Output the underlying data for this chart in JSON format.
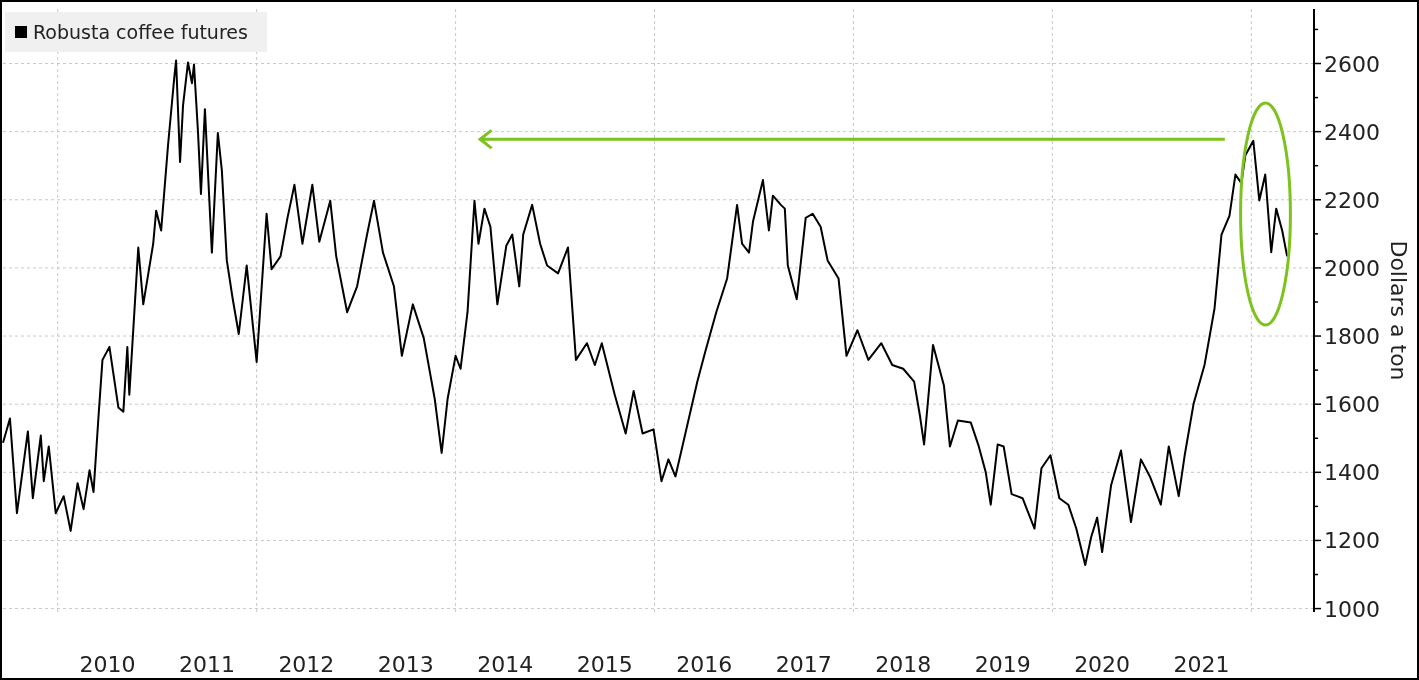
{
  "chart_data": {
    "type": "line",
    "xlabel": null,
    "ylabel": "Dollars a ton",
    "xlim": [
      2009.45,
      2022.63
    ],
    "xticks": [
      {
        "value": 2010,
        "label": null
      },
      {
        "value": 2010.5,
        "label": "2010"
      },
      {
        "value": 2011.5,
        "label": "2011"
      },
      {
        "value": 2012,
        "label": null
      },
      {
        "value": 2012.5,
        "label": "2012"
      },
      {
        "value": 2013.5,
        "label": "2013"
      },
      {
        "value": 2014,
        "label": null
      },
      {
        "value": 2014.5,
        "label": "2014"
      },
      {
        "value": 2015.5,
        "label": "2015"
      },
      {
        "value": 2016,
        "label": null
      },
      {
        "value": 2016.5,
        "label": "2016"
      },
      {
        "value": 2017.5,
        "label": "2017"
      },
      {
        "value": 2018,
        "label": null
      },
      {
        "value": 2018.5,
        "label": "2018"
      },
      {
        "value": 2019.5,
        "label": "2019"
      },
      {
        "value": 2020,
        "label": null
      },
      {
        "value": 2020.5,
        "label": "2020"
      },
      {
        "value": 2021.5,
        "label": "2021"
      },
      {
        "value": 2022,
        "label": null
      }
    ],
    "ylim": [
      990,
      2760
    ],
    "yticks": [
      1000,
      {
        "value": 1100,
        "label": null
      },
      1200,
      {
        "value": 1300,
        "label": null
      },
      1400,
      {
        "value": 1500,
        "label": null
      },
      1600,
      {
        "value": 1700,
        "label": null
      },
      1800,
      {
        "value": 1900,
        "label": null
      },
      2000,
      {
        "value": 2100,
        "label": null
      },
      2200,
      {
        "value": 2300,
        "label": null
      },
      2400,
      {
        "value": 2500,
        "label": null
      },
      2600,
      {
        "value": 2700,
        "label": null
      }
    ],
    "grid": true,
    "legend": "top left",
    "marker": "none",
    "line_style": "solid",
    "series": [
      {
        "name": "Robusta coffee futures",
        "color": "#000000",
        "x": [
          2009.45,
          2009.52,
          2009.59,
          2009.7,
          2009.75,
          2009.83,
          2009.86,
          2009.91,
          2009.98,
          2010.06,
          2010.13,
          2010.2,
          2010.26,
          2010.32,
          2010.36,
          2010.41,
          2010.45,
          2010.52,
          2010.61,
          2010.66,
          2010.7,
          2010.72,
          2010.81,
          2010.86,
          2010.96,
          2010.99,
          2011.04,
          2011.11,
          2011.17,
          2011.19,
          2011.23,
          2011.26,
          2011.31,
          2011.35,
          2011.37,
          2011.41,
          2011.44,
          2011.48,
          2011.55,
          2011.61,
          2011.65,
          2011.7,
          2011.76,
          2011.82,
          2011.9,
          2012.0,
          2012.1,
          2012.15,
          2012.24,
          2012.31,
          2012.38,
          2012.46,
          2012.56,
          2012.63,
          2012.74,
          2012.8,
          2012.91,
          2013.01,
          2013.11,
          2013.18,
          2013.27,
          2013.38,
          2013.46,
          2013.57,
          2013.68,
          2013.79,
          2013.86,
          2013.92,
          2014.0,
          2014.05,
          2014.12,
          2014.19,
          2014.23,
          2014.29,
          2014.35,
          2014.42,
          2014.51,
          2014.57,
          2014.64,
          2014.68,
          2014.77,
          2014.85,
          2014.92,
          2015.03,
          2015.13,
          2015.21,
          2015.32,
          2015.4,
          2015.47,
          2015.6,
          2015.71,
          2015.79,
          2015.88,
          2015.99,
          2016.07,
          2016.14,
          2016.21,
          2016.28,
          2016.43,
          2016.51,
          2016.62,
          2016.73,
          2016.83,
          2016.88,
          2016.95,
          2016.99,
          2017.09,
          2017.15,
          2017.19,
          2017.27,
          2017.31,
          2017.34,
          2017.43,
          2017.52,
          2017.59,
          2017.67,
          2017.74,
          2017.85,
          2017.93,
          2018.04,
          2018.15,
          2018.28,
          2018.39,
          2018.5,
          2018.61,
          2018.67,
          2018.71,
          2018.8,
          2018.91,
          2018.97,
          2019.05,
          2019.18,
          2019.26,
          2019.33,
          2019.38,
          2019.45,
          2019.51,
          2019.59,
          2019.7,
          2019.82,
          2019.89,
          2019.98,
          2020.07,
          2020.16,
          2020.24,
          2020.33,
          2020.39,
          2020.45,
          2020.5,
          2020.59,
          2020.69,
          2020.79,
          2020.89,
          2020.98,
          2021.09,
          2021.17,
          2021.27,
          2021.33,
          2021.42,
          2021.53,
          2021.63,
          2021.7,
          2021.78,
          2021.84,
          2021.9,
          2021.94,
          2022.02,
          2022.08,
          2022.14,
          2022.2,
          2022.25,
          2022.31,
          2022.36
        ],
        "values": [
          1487,
          1558,
          1280,
          1520,
          1324,
          1508,
          1374,
          1476,
          1280,
          1330,
          1228,
          1368,
          1292,
          1406,
          1342,
          1563,
          1730,
          1768,
          1590,
          1578,
          1768,
          1628,
          2060,
          1893,
          2071,
          2168,
          2110,
          2363,
          2553,
          2609,
          2311,
          2477,
          2603,
          2542,
          2597,
          2401,
          2217,
          2466,
          2045,
          2396,
          2287,
          2022,
          1908,
          1806,
          2007,
          1724,
          2159,
          1996,
          2034,
          2147,
          2244,
          2071,
          2244,
          2077,
          2197,
          2034,
          1870,
          1946,
          2098,
          2197,
          2045,
          1946,
          1742,
          1893,
          1794,
          1616,
          1457,
          1616,
          1742,
          1704,
          1870,
          2197,
          2071,
          2174,
          2121,
          1893,
          2065,
          2098,
          1946,
          2098,
          2185,
          2071,
          2007,
          1984,
          2060,
          1730,
          1779,
          1715,
          1779,
          1628,
          1514,
          1639,
          1514,
          1526,
          1374,
          1438,
          1388,
          1476,
          1666,
          1754,
          1869,
          1969,
          2185,
          2071,
          2045,
          2136,
          2258,
          2110,
          2212,
          2185,
          2174,
          2007,
          1908,
          2147,
          2159,
          2121,
          2022,
          1969,
          1742,
          1817,
          1730,
          1779,
          1715,
          1704,
          1666,
          1563,
          1482,
          1774,
          1654,
          1476,
          1552,
          1546,
          1476,
          1400,
          1305,
          1482,
          1476,
          1336,
          1324,
          1235,
          1412,
          1450,
          1324,
          1305,
          1235,
          1128,
          1210,
          1267,
          1166,
          1362,
          1464,
          1254,
          1438,
          1388,
          1305,
          1476,
          1330,
          1450,
          1602,
          1716,
          1881,
          2098,
          2153,
          2274,
          2249,
          2331,
          2373,
          2198,
          2274,
          2046,
          2174,
          2110,
          2034
        ]
      }
    ]
  }
}
